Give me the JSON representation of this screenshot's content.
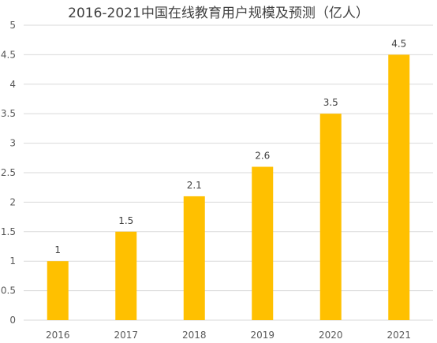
{
  "chart_data": {
    "type": "bar",
    "title": "2016-2021中国在线教育用户规模及预测（亿人）",
    "categories": [
      "2016",
      "2017",
      "2018",
      "2019",
      "2020",
      "2021"
    ],
    "values": [
      1,
      1.5,
      2.1,
      2.6,
      3.5,
      4.5
    ],
    "data_labels": [
      "1",
      "1.5",
      "2.1",
      "2.6",
      "3.5",
      "4.5"
    ],
    "ylim": [
      0,
      5
    ],
    "yticks": [
      "0",
      "0.5",
      "1",
      "1.5",
      "2",
      "2.5",
      "3",
      "3.5",
      "4",
      "4.5",
      "5"
    ],
    "grid": true,
    "legend": "none",
    "bar_color": "#FFC000"
  }
}
